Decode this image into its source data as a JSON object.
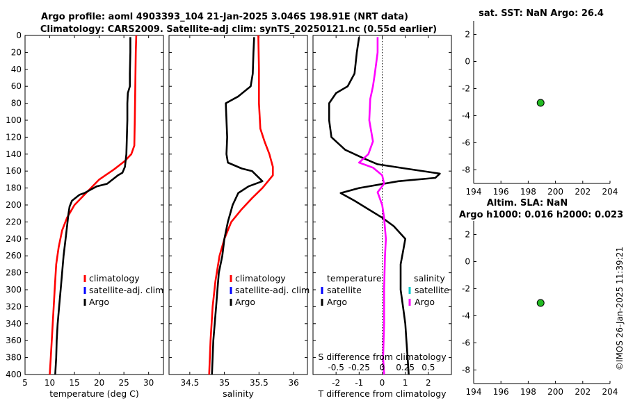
{
  "title": {
    "line1": "Argo profile: aoml 4903393_104 21-Jan-2025 3.046S 198.91E (NRT data)",
    "line2": "Climatology: CARS2009. Satellite-adj clim: synTS_20250121.nc (0.55d earlier)"
  },
  "timestamp": "©IMOS 26-Jan-2025 11:39:21",
  "colors": {
    "climatology": "#ff0000",
    "satellite": "#0000ff",
    "argo": "#000000",
    "salinity_diff": "#ff00ff",
    "salinity_satellite": "#00cccc",
    "marker": "#22bb22"
  },
  "chart_data": [
    {
      "id": "temperature",
      "type": "line",
      "xlabel": "temperature (deg C)",
      "ylabel": "",
      "xlim": [
        5,
        33
      ],
      "ylim": [
        400,
        0
      ],
      "xticks": [
        5,
        10,
        15,
        20,
        25,
        30
      ],
      "yticks": [
        0,
        20,
        40,
        60,
        80,
        100,
        120,
        140,
        160,
        180,
        200,
        220,
        240,
        260,
        280,
        300,
        320,
        340,
        360,
        380,
        400
      ],
      "legend": [
        "climatology",
        "satellite-adj. clim",
        "Argo"
      ],
      "series": [
        {
          "name": "climatology",
          "color": "#ff0000",
          "points": [
            [
              27.5,
              0
            ],
            [
              27.4,
              20
            ],
            [
              27.3,
              60
            ],
            [
              27.2,
              100
            ],
            [
              27.1,
              130
            ],
            [
              26.5,
              140
            ],
            [
              25.2,
              148
            ],
            [
              23,
              158
            ],
            [
              20,
              170
            ],
            [
              17.5,
              185
            ],
            [
              15,
              200
            ],
            [
              13.5,
              215
            ],
            [
              12.5,
              230
            ],
            [
              11.8,
              250
            ],
            [
              11.3,
              270
            ],
            [
              11,
              300
            ],
            [
              10.6,
              340
            ],
            [
              10.2,
              380
            ],
            [
              10,
              400
            ]
          ]
        },
        {
          "name": "Argo",
          "color": "#000000",
          "points": [
            [
              26.3,
              2
            ],
            [
              26.3,
              20
            ],
            [
              26.2,
              45
            ],
            [
              26.2,
              60
            ],
            [
              25.8,
              68
            ],
            [
              25.7,
              80
            ],
            [
              25.7,
              100
            ],
            [
              25.6,
              120
            ],
            [
              25.5,
              140
            ],
            [
              25.3,
              150
            ],
            [
              25.2,
              155
            ],
            [
              24.7,
              162
            ],
            [
              23.8,
              165
            ],
            [
              21.6,
              175
            ],
            [
              19.5,
              178
            ],
            [
              17,
              186
            ],
            [
              16,
              188
            ],
            [
              14.5,
              195
            ],
            [
              14,
              202
            ],
            [
              13.8,
              210
            ],
            [
              13.5,
              225
            ],
            [
              13.2,
              240
            ],
            [
              12.8,
              260
            ],
            [
              12.5,
              280
            ],
            [
              12.2,
              300
            ],
            [
              11.9,
              320
            ],
            [
              11.6,
              340
            ],
            [
              11.4,
              360
            ],
            [
              11.3,
              380
            ],
            [
              11.1,
              400
            ]
          ]
        }
      ]
    },
    {
      "id": "salinity",
      "type": "line",
      "xlabel": "salinity",
      "ylabel": "",
      "xlim": [
        34.2,
        36.2
      ],
      "ylim": [
        400,
        0
      ],
      "xticks": [
        34.5,
        35,
        35.5,
        36
      ],
      "legend": [
        "climatology",
        "satellite-adj. clim",
        "Argo"
      ],
      "series": [
        {
          "name": "climatology",
          "color": "#ff0000",
          "points": [
            [
              35.49,
              0
            ],
            [
              35.5,
              40
            ],
            [
              35.5,
              80
            ],
            [
              35.52,
              110
            ],
            [
              35.58,
              125
            ],
            [
              35.65,
              140
            ],
            [
              35.7,
              155
            ],
            [
              35.7,
              165
            ],
            [
              35.55,
              180
            ],
            [
              35.4,
              192
            ],
            [
              35.25,
              205
            ],
            [
              35.1,
              220
            ],
            [
              35,
              240
            ],
            [
              34.93,
              260
            ],
            [
              34.87,
              290
            ],
            [
              34.83,
              320
            ],
            [
              34.8,
              360
            ],
            [
              34.78,
              400
            ]
          ]
        },
        {
          "name": "Argo",
          "color": "#000000",
          "points": [
            [
              35.43,
              2
            ],
            [
              35.42,
              20
            ],
            [
              35.41,
              45
            ],
            [
              35.38,
              60
            ],
            [
              35.2,
              72
            ],
            [
              35.02,
              80
            ],
            [
              35.03,
              100
            ],
            [
              35.04,
              120
            ],
            [
              35.03,
              140
            ],
            [
              35.05,
              150
            ],
            [
              35.25,
              157
            ],
            [
              35.4,
              160
            ],
            [
              35.55,
              172
            ],
            [
              35.35,
              178
            ],
            [
              35.2,
              186
            ],
            [
              35.12,
              200
            ],
            [
              35.05,
              220
            ],
            [
              35,
              240
            ],
            [
              34.97,
              260
            ],
            [
              34.92,
              280
            ],
            [
              34.9,
              300
            ],
            [
              34.88,
              320
            ],
            [
              34.86,
              340
            ],
            [
              34.84,
              360
            ],
            [
              34.83,
              380
            ],
            [
              34.82,
              400
            ]
          ]
        }
      ]
    },
    {
      "id": "difference",
      "type": "line",
      "xlabel": "T difference from climatology",
      "ylabel": "",
      "xlim": [
        -3,
        3
      ],
      "ylim": [
        400,
        0
      ],
      "xticks": [
        -2,
        -1,
        0,
        1,
        2
      ],
      "top_axis": {
        "label": "S difference from climatology",
        "range": [
          -0.75,
          0.75
        ],
        "ticks": [
          -0.5,
          -0.25,
          0,
          0.25,
          0.5
        ],
        "tick_labels": [
          "-0.5",
          "-0.25",
          "0",
          "0.25",
          "0.5"
        ]
      },
      "legend_groups": [
        {
          "heading": "temperature",
          "items": [
            "satellite",
            "Argo"
          ]
        },
        {
          "heading": "salinity",
          "items": [
            "satellite",
            "Argo"
          ]
        }
      ],
      "series": [
        {
          "name": "temperature Argo",
          "color": "#000000",
          "points": [
            [
              -1,
              2
            ],
            [
              -1.1,
              20
            ],
            [
              -1.2,
              45
            ],
            [
              -1.5,
              60
            ],
            [
              -2,
              68
            ],
            [
              -2.3,
              80
            ],
            [
              -2.3,
              100
            ],
            [
              -2.2,
              120
            ],
            [
              -1.6,
              135
            ],
            [
              -0.8,
              145
            ],
            [
              -0.2,
              152
            ],
            [
              1,
              157
            ],
            [
              2.5,
              163
            ],
            [
              2.3,
              168
            ],
            [
              0.7,
              172
            ],
            [
              -1,
              180
            ],
            [
              -1.8,
              186
            ],
            [
              -1.2,
              195
            ],
            [
              -0.6,
              205
            ],
            [
              0,
              215
            ],
            [
              0.5,
              225
            ],
            [
              1,
              240
            ],
            [
              0.9,
              255
            ],
            [
              0.8,
              270
            ],
            [
              0.8,
              300
            ],
            [
              0.9,
              320
            ],
            [
              1,
              340
            ],
            [
              1.05,
              360
            ],
            [
              1.1,
              380
            ],
            [
              1.15,
              400
            ]
          ]
        },
        {
          "name": "salinity Argo",
          "color": "#ff00ff",
          "points": [
            [
              -0.05,
              2
            ],
            [
              -0.05,
              20
            ],
            [
              -0.08,
              45
            ],
            [
              -0.1,
              60
            ],
            [
              -0.13,
              75
            ],
            [
              -0.14,
              100
            ],
            [
              -0.1,
              125
            ],
            [
              -0.15,
              140
            ],
            [
              -0.25,
              150
            ],
            [
              -0.1,
              156
            ],
            [
              0,
              165
            ],
            [
              0.02,
              175
            ],
            [
              -0.05,
              185
            ],
            [
              0,
              200
            ],
            [
              0.02,
              215
            ],
            [
              0.04,
              240
            ],
            [
              0.03,
              260
            ],
            [
              0.02,
              300
            ],
            [
              0.02,
              340
            ],
            [
              0.01,
              380
            ],
            [
              0.02,
              400
            ]
          ]
        }
      ]
    },
    {
      "id": "sst_map",
      "type": "scatter",
      "title": "sat. SST: NaN Argo: 26.4",
      "xlim": [
        194,
        204
      ],
      "ylim": [
        -9,
        3
      ],
      "xticks": [
        194,
        196,
        198,
        200,
        202,
        204
      ],
      "yticks": [
        2,
        0,
        -2,
        -4,
        -6,
        -8
      ],
      "points": [
        [
          198.91,
          -3.05
        ]
      ]
    },
    {
      "id": "sla_map",
      "type": "scatter",
      "title": "Altim. SLA: NaN",
      "subtitle": "Argo h1000: 0.016 h2000: 0.023",
      "xlim": [
        194,
        204
      ],
      "ylim": [
        -9,
        3
      ],
      "xticks": [
        194,
        196,
        198,
        200,
        202,
        204
      ],
      "yticks": [
        2,
        0,
        -2,
        -4,
        -6,
        -8
      ],
      "points": [
        [
          198.91,
          -3.05
        ]
      ]
    }
  ]
}
